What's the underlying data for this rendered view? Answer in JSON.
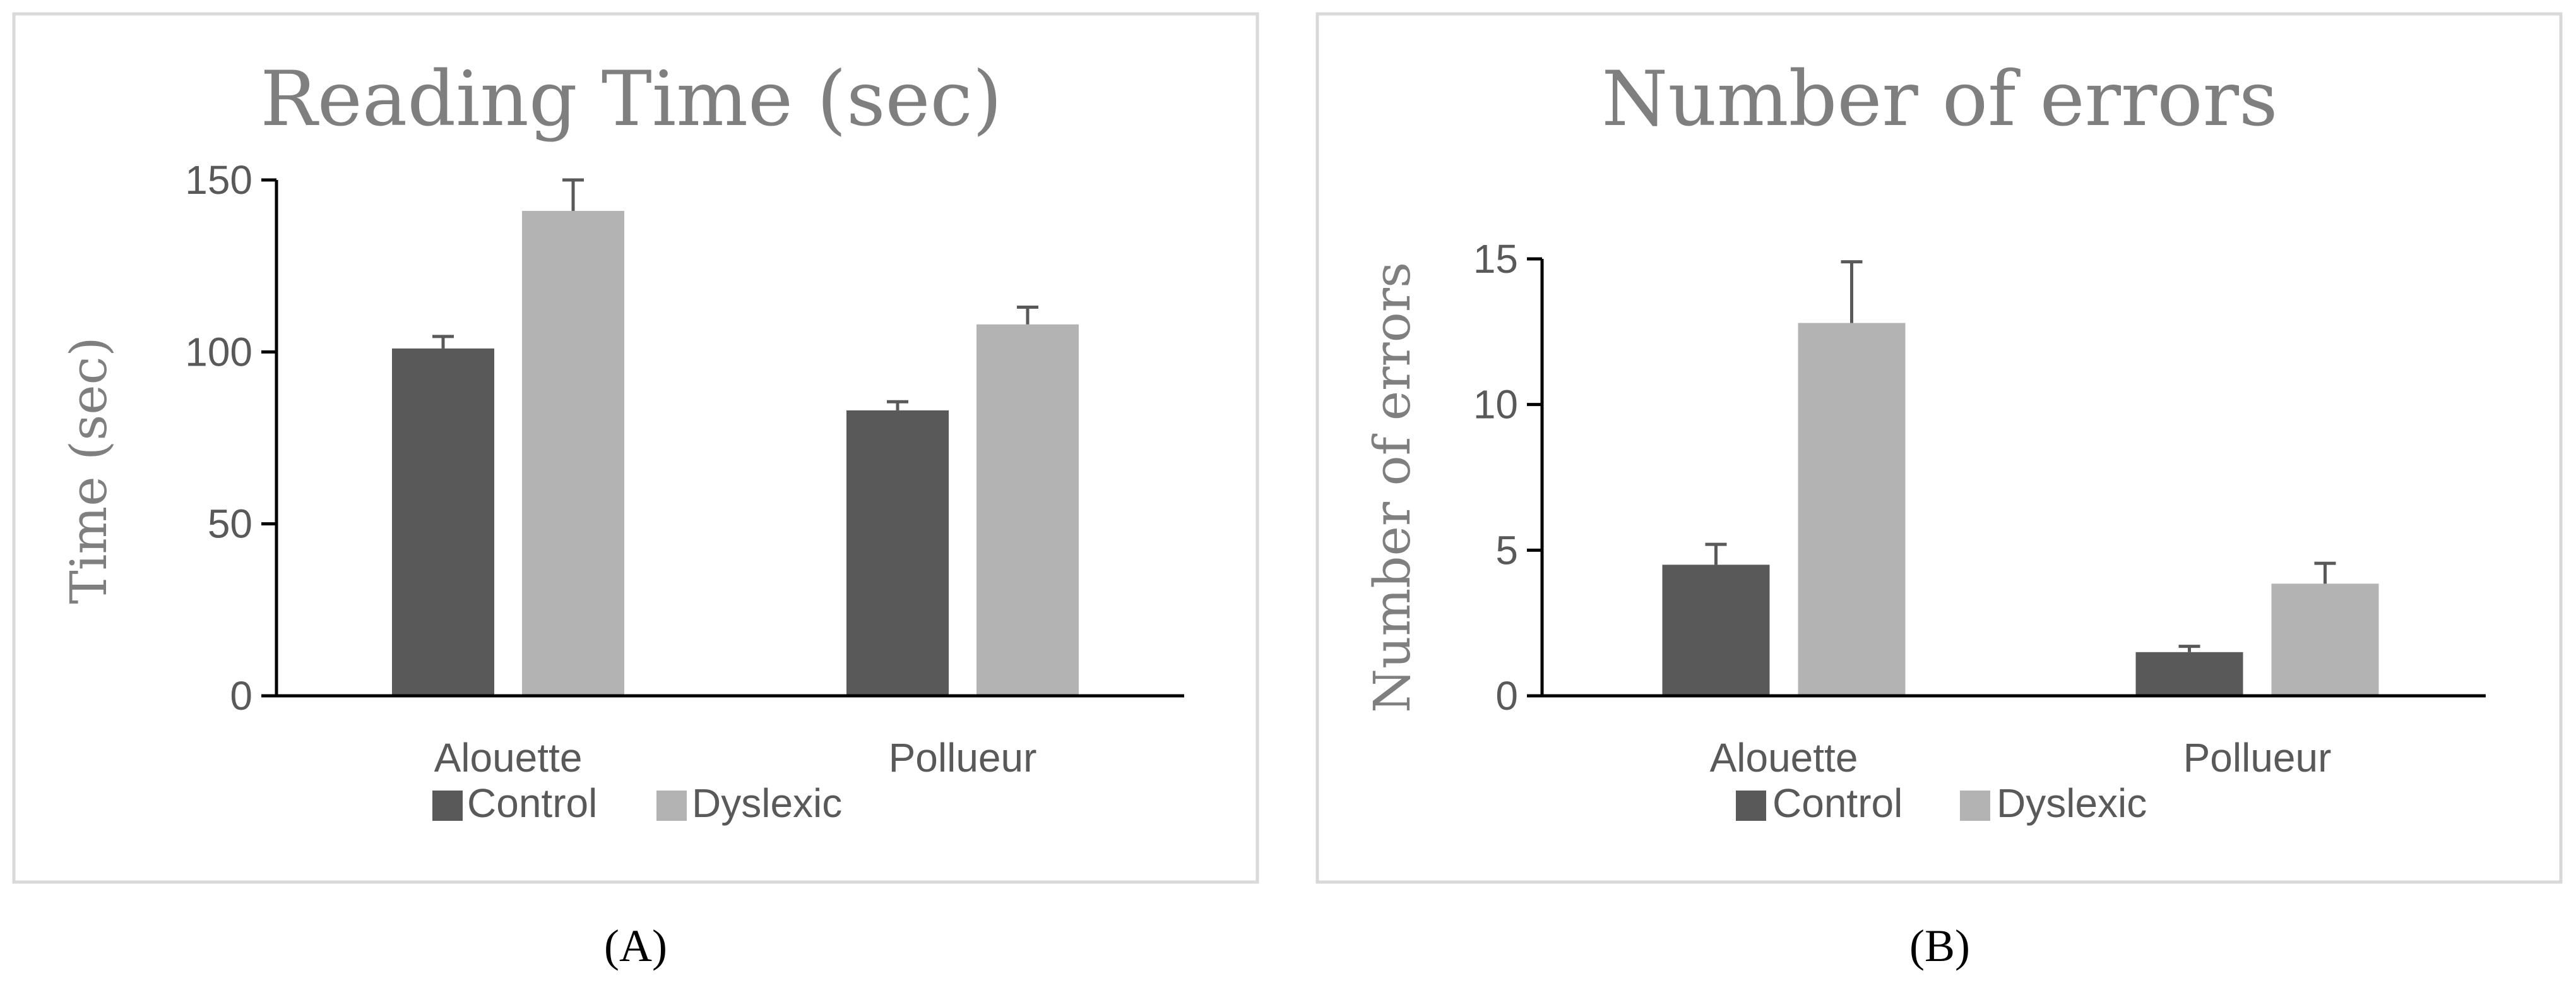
{
  "colors": {
    "control": "#595959",
    "dyslexic": "#b3b3b3",
    "axis": "#000000",
    "error_bar": "#595959",
    "panel_border": "#d9d9d9"
  },
  "chart_data": [
    {
      "type": "bar",
      "panel_label": "(A)",
      "title": "Reading Time (sec)",
      "xlabel": "",
      "ylabel": "Time (sec)",
      "ylim": [
        0,
        150
      ],
      "yticks": [
        0,
        50,
        100,
        150
      ],
      "categories": [
        "Alouette",
        "Pollueur"
      ],
      "series": [
        {
          "name": "Control",
          "values": [
            101,
            83
          ],
          "errors": [
            3.5,
            2.5
          ]
        },
        {
          "name": "Dyslexic",
          "values": [
            141,
            108
          ],
          "errors": [
            9,
            5
          ]
        }
      ],
      "legend": "bottom",
      "grid": false
    },
    {
      "type": "bar",
      "panel_label": "(B)",
      "title": "Number of errors",
      "xlabel": "",
      "ylabel": "Number of errors",
      "ylim": [
        0,
        15
      ],
      "yticks": [
        0,
        5,
        10,
        15
      ],
      "categories": [
        "Alouette",
        "Pollueur"
      ],
      "series": [
        {
          "name": "Control",
          "values": [
            4.5,
            1.5
          ],
          "errors": [
            0.7,
            0.2
          ]
        },
        {
          "name": "Dyslexic",
          "values": [
            12.8,
            3.85
          ],
          "errors": [
            2.1,
            0.7
          ]
        }
      ],
      "legend": "bottom",
      "grid": false
    }
  ]
}
